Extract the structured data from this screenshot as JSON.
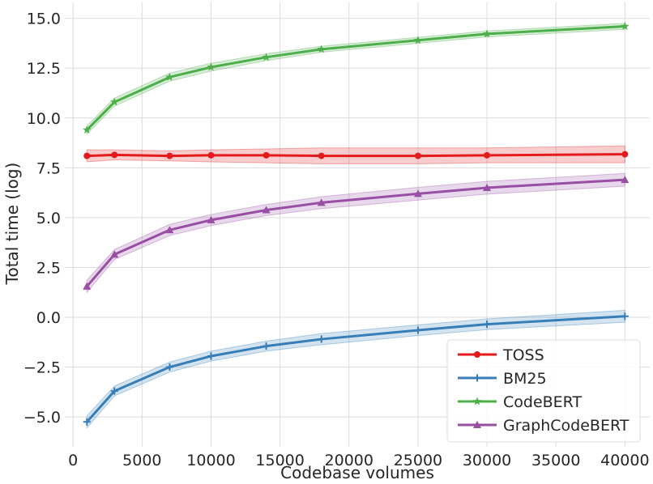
{
  "chart_data": {
    "type": "line",
    "xlabel": "Codebase volumes",
    "ylabel": "Total time (log)",
    "xlim": [
      -600,
      41800
    ],
    "ylim": [
      -6.5,
      15.8
    ],
    "grid": true,
    "legend_position": "lower-right",
    "x_ticks": [
      0,
      5000,
      10000,
      15000,
      20000,
      25000,
      30000,
      35000,
      40000
    ],
    "y_ticks": [
      -5.0,
      -2.5,
      0.0,
      2.5,
      5.0,
      7.5,
      10.0,
      12.5,
      15.0
    ],
    "x_tick_labels": [
      "0",
      "5000",
      "10000",
      "15000",
      "20000",
      "25000",
      "30000",
      "35000",
      "40000"
    ],
    "y_tick_labels": [
      "−5.0",
      "−2.5",
      "0.0",
      "2.5",
      "5.0",
      "7.5",
      "10.0",
      "12.5",
      "15.0"
    ],
    "x": [
      1000,
      3000,
      7000,
      10000,
      14000,
      18000,
      25000,
      30000,
      40000
    ],
    "series": [
      {
        "name": "TOSS",
        "color": "#e41a1c",
        "marker": "circle",
        "values": [
          8.1,
          8.15,
          8.1,
          8.13,
          8.13,
          8.1,
          8.1,
          8.13,
          8.18
        ],
        "lower": [
          7.8,
          7.9,
          7.85,
          7.8,
          7.75,
          7.7,
          7.7,
          7.75,
          7.75
        ],
        "upper": [
          8.4,
          8.4,
          8.35,
          8.4,
          8.45,
          8.5,
          8.5,
          8.5,
          8.6
        ]
      },
      {
        "name": "BM25",
        "color": "#377eb8",
        "marker": "plus",
        "values": [
          -5.25,
          -3.7,
          -2.5,
          -1.95,
          -1.45,
          -1.1,
          -0.65,
          -0.35,
          0.05
        ],
        "lower": [
          -5.55,
          -3.95,
          -2.75,
          -2.2,
          -1.7,
          -1.38,
          -0.92,
          -0.62,
          -0.25
        ],
        "upper": [
          -4.95,
          -3.45,
          -2.25,
          -1.7,
          -1.2,
          -0.82,
          -0.38,
          -0.08,
          0.35
        ]
      },
      {
        "name": "CodeBERT",
        "color": "#4daf4a",
        "marker": "star",
        "values": [
          9.4,
          10.8,
          12.05,
          12.55,
          13.05,
          13.45,
          13.9,
          14.22,
          14.6
        ],
        "lower": [
          9.2,
          10.6,
          11.85,
          12.35,
          12.88,
          13.3,
          13.75,
          14.07,
          14.45
        ],
        "upper": [
          9.6,
          11.0,
          12.25,
          12.75,
          13.22,
          13.6,
          14.05,
          14.37,
          14.75
        ]
      },
      {
        "name": "GraphCodeBERT",
        "color": "#984ea3",
        "marker": "triangle",
        "values": [
          1.55,
          3.15,
          4.38,
          4.88,
          5.38,
          5.75,
          6.2,
          6.5,
          6.9
        ],
        "lower": [
          1.25,
          2.9,
          4.1,
          4.6,
          5.1,
          5.45,
          5.88,
          6.18,
          6.58
        ],
        "upper": [
          1.85,
          3.4,
          4.66,
          5.16,
          5.66,
          6.05,
          6.52,
          6.82,
          7.22
        ]
      }
    ]
  }
}
